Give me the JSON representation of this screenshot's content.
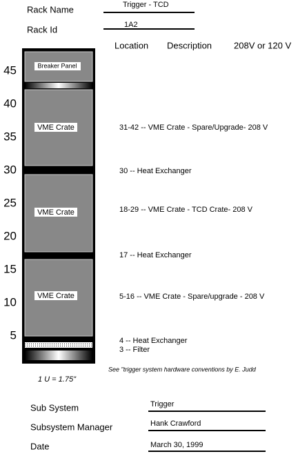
{
  "header": {
    "rack_name_label": "Rack Name",
    "rack_name": "Trigger - TCD",
    "rack_id_label": "Rack Id",
    "rack_id": "1A2"
  },
  "columns": [
    "Location",
    "Description",
    "208V or 120 V"
  ],
  "scale": [
    45,
    40,
    35,
    30,
    25,
    20,
    15,
    10,
    5
  ],
  "units": [
    "Breaker Panel",
    "VME Crate",
    "VME Crate",
    "VME Crate"
  ],
  "descriptions": [
    "31-42 -- VME Crate - Spare/Upgrade- 208 V",
    "30 -- Heat Exchanger",
    "18-29 -- VME Crate  - TCD Crate- 208 V",
    "17 -- Heat Exchanger",
    "5-16 -- VME Crate - Spare/upgrade - 208 V",
    "4 -- Heat Exchanger",
    "3 -- Filter"
  ],
  "note": "See \"trigger system hardware conventions by E. Judd",
  "unit_note": "1 U = 1.75\"",
  "footer": [
    {
      "label": "Sub System",
      "value": "Trigger"
    },
    {
      "label": "Subsystem Manager",
      "value": "Hank Crawford"
    },
    {
      "label": "Date",
      "value": "March 30, 1999"
    }
  ]
}
